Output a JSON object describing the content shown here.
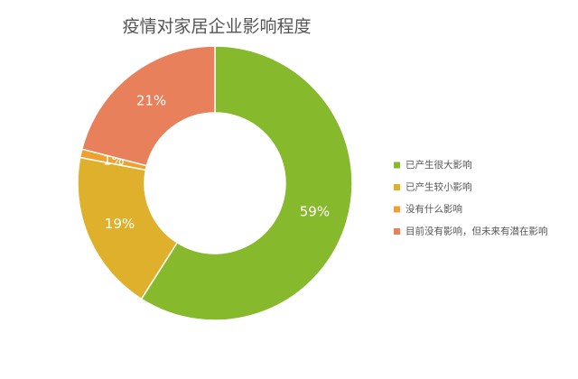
{
  "chart_data": {
    "type": "donut",
    "title": "疫情对家居企业影响程度",
    "categories": [
      "已产生很大影响",
      "已产生较小影响",
      "没有什么影响",
      "目前没有影响，但未来有潜在影响"
    ],
    "values": [
      59,
      19,
      1,
      21
    ],
    "value_labels": [
      "59%",
      "19%",
      "1%",
      "21%"
    ],
    "colors": [
      "#86b92b",
      "#dfb02b",
      "#eea12f",
      "#e8805b"
    ],
    "legend": "right"
  }
}
